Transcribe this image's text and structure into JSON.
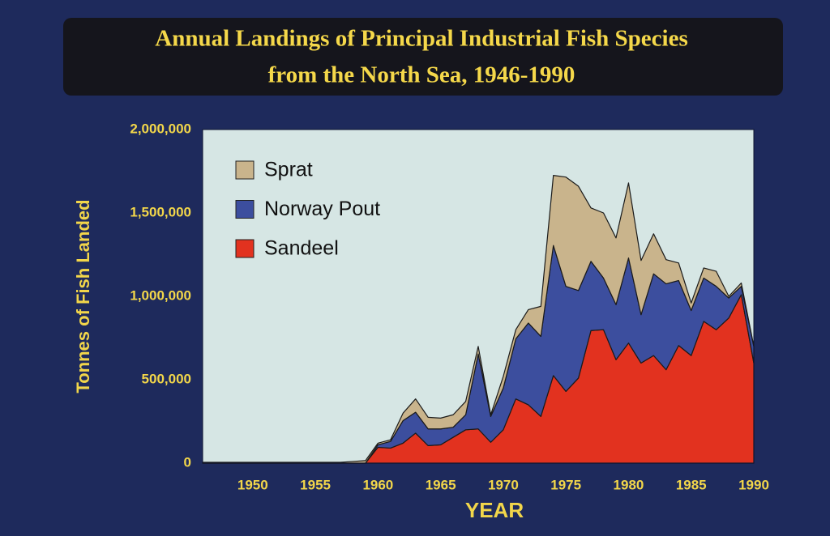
{
  "chart_data": {
    "type": "stacked-area",
    "title": [
      "Annual Landings of Principal Industrial Fish Species",
      "from the North Sea, 1946-1990"
    ],
    "x_label": "YEAR",
    "y_label": "Tonnes of Fish Landed",
    "x": [
      1946,
      1947,
      1948,
      1949,
      1950,
      1951,
      1952,
      1953,
      1954,
      1955,
      1956,
      1957,
      1958,
      1959,
      1960,
      1961,
      1962,
      1963,
      1964,
      1965,
      1966,
      1967,
      1968,
      1969,
      1970,
      1971,
      1972,
      1973,
      1974,
      1975,
      1976,
      1977,
      1978,
      1979,
      1980,
      1981,
      1982,
      1983,
      1984,
      1985,
      1986,
      1987,
      1988,
      1989,
      1990
    ],
    "xlim": [
      1946,
      1990
    ],
    "xticks": [
      1950,
      1955,
      1960,
      1965,
      1970,
      1975,
      1980,
      1985,
      1990
    ],
    "ylim": [
      0,
      2000000
    ],
    "yticks": [
      0,
      {
        "value": 500000,
        "label": "500,000"
      },
      {
        "value": 1000000,
        "label": "1,000,000"
      },
      {
        "value": 1500000,
        "label": "1,500,000"
      },
      {
        "value": 2000000,
        "label": "2,000,000"
      }
    ],
    "legend": "upper left",
    "series": [
      {
        "name": "Sandeel",
        "color": "#e2321f",
        "values": [
          0,
          0,
          0,
          0,
          0,
          0,
          0,
          0,
          0,
          0,
          0,
          0,
          0,
          0,
          95000,
          90000,
          120000,
          180000,
          105000,
          110000,
          155000,
          200000,
          205000,
          125000,
          200000,
          385000,
          350000,
          280000,
          525000,
          430000,
          510000,
          795000,
          800000,
          620000,
          720000,
          600000,
          645000,
          560000,
          705000,
          645000,
          850000,
          800000,
          870000,
          1010000,
          600000
        ]
      },
      {
        "name": "Norway Pout",
        "color": "#3c4e9e",
        "values": [
          0,
          0,
          0,
          0,
          0,
          0,
          0,
          0,
          0,
          0,
          0,
          0,
          0,
          0,
          15000,
          40000,
          135000,
          125000,
          100000,
          95000,
          60000,
          90000,
          450000,
          155000,
          250000,
          360000,
          490000,
          480000,
          780000,
          630000,
          525000,
          415000,
          310000,
          330000,
          510000,
          290000,
          490000,
          515000,
          390000,
          270000,
          260000,
          260000,
          120000,
          50000,
          100000
        ]
      },
      {
        "name": "Sprat",
        "color": "#c9b48c",
        "values": [
          5000,
          5000,
          5000,
          5000,
          5000,
          5000,
          5000,
          5000,
          5000,
          5000,
          5000,
          5000,
          10000,
          15000,
          10000,
          10000,
          45000,
          80000,
          70000,
          65000,
          75000,
          80000,
          45000,
          10000,
          70000,
          55000,
          80000,
          180000,
          420000,
          655000,
          625000,
          320000,
          390000,
          400000,
          450000,
          325000,
          240000,
          145000,
          105000,
          45000,
          60000,
          90000,
          10000,
          20000,
          0
        ]
      }
    ]
  }
}
